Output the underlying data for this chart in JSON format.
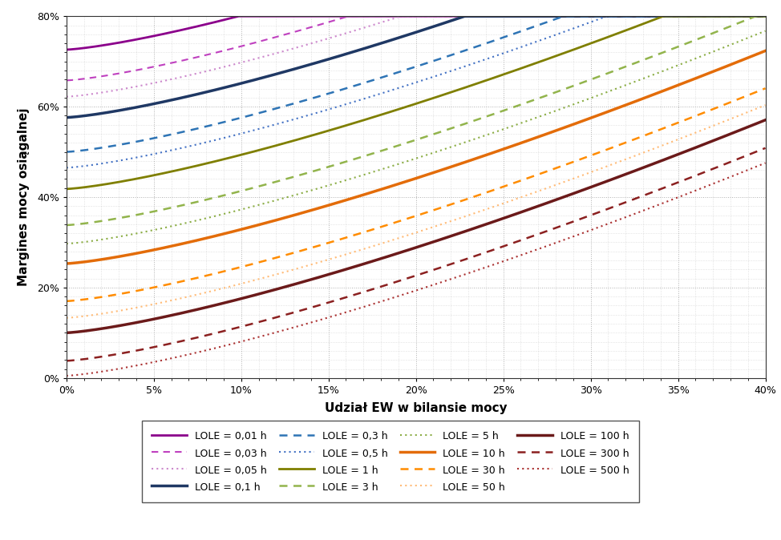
{
  "title": "",
  "xlabel": "Udział EW w bilansie mocy",
  "ylabel": "Margines mocy osiągalnej",
  "xlim": [
    0,
    0.4
  ],
  "ylim": [
    0,
    0.8
  ],
  "xticks": [
    0,
    0.05,
    0.1,
    0.15,
    0.2,
    0.25,
    0.3,
    0.35,
    0.4
  ],
  "yticks": [
    0,
    0.2,
    0.4,
    0.6,
    0.8
  ],
  "background_color": "#ffffff",
  "grid_color": "#b0b0b0",
  "curves": [
    {
      "label": "LOLE = 0,01 h",
      "color": "#8B008B",
      "linestyle": "solid",
      "linewidth": 2.0,
      "y0": 0.726
    },
    {
      "label": "LOLE = 0,03 h",
      "color": "#BF40BF",
      "linestyle": "dashed",
      "linewidth": 1.5,
      "y0": 0.658
    },
    {
      "label": "LOLE = 0,05 h",
      "color": "#CC88CC",
      "linestyle": "dotted",
      "linewidth": 1.5,
      "y0": 0.622
    },
    {
      "label": "LOLE = 0,1 h",
      "color": "#1F3864",
      "linestyle": "solid",
      "linewidth": 2.5,
      "y0": 0.576
    },
    {
      "label": "LOLE = 0,3 h",
      "color": "#2E74B5",
      "linestyle": "dashed",
      "linewidth": 1.8,
      "y0": 0.5
    },
    {
      "label": "LOLE = 0,5 h",
      "color": "#4472C4",
      "linestyle": "dotted",
      "linewidth": 1.5,
      "y0": 0.465
    },
    {
      "label": "LOLE = 1 h",
      "color": "#7F7F00",
      "linestyle": "solid",
      "linewidth": 2.0,
      "y0": 0.418
    },
    {
      "label": "LOLE = 3 h",
      "color": "#92B44C",
      "linestyle": "dashed",
      "linewidth": 1.8,
      "y0": 0.338
    },
    {
      "label": "LOLE = 5 h",
      "color": "#8BAD45",
      "linestyle": "dotted",
      "linewidth": 1.5,
      "y0": 0.297
    },
    {
      "label": "LOLE = 10 h",
      "color": "#E36C09",
      "linestyle": "solid",
      "linewidth": 2.5,
      "y0": 0.253
    },
    {
      "label": "LOLE = 30 h",
      "color": "#FF8C00",
      "linestyle": "dashed",
      "linewidth": 1.8,
      "y0": 0.17
    },
    {
      "label": "LOLE = 50 h",
      "color": "#FFBB77",
      "linestyle": "dotted",
      "linewidth": 1.5,
      "y0": 0.133
    },
    {
      "label": "LOLE = 100 h",
      "color": "#6B1A1A",
      "linestyle": "solid",
      "linewidth": 2.5,
      "y0": 0.1
    },
    {
      "label": "LOLE = 300 h",
      "color": "#8B2020",
      "linestyle": "dashed",
      "linewidth": 1.8,
      "y0": 0.038
    },
    {
      "label": "LOLE = 500 h",
      "color": "#AA3030",
      "linestyle": "dotted",
      "linewidth": 1.5,
      "y0": 0.005
    }
  ],
  "curve_A": 0.72,
  "curve_B": 0.7,
  "curve_C": 8.0
}
